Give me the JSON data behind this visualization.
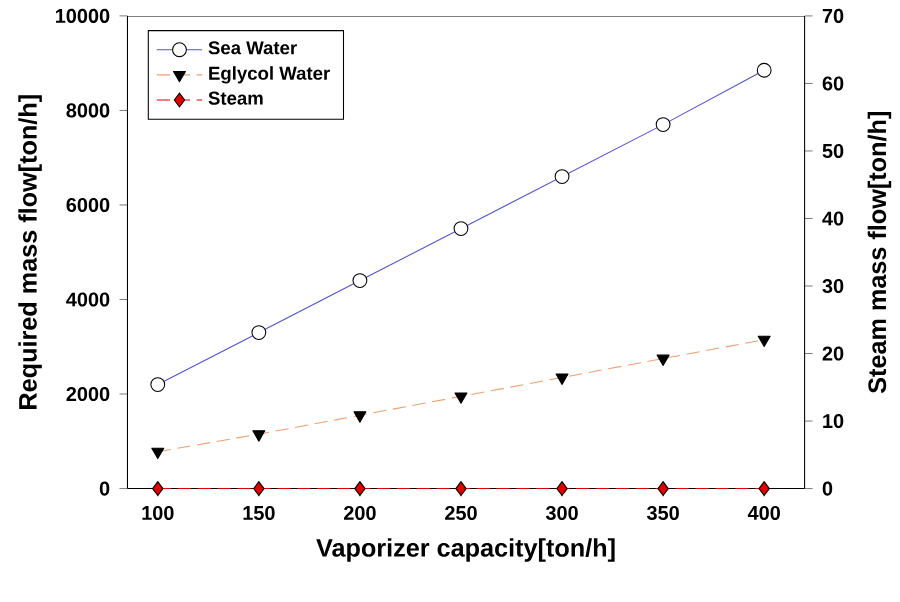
{
  "chart_data": {
    "type": "line",
    "xlabel": "Vaporizer capacity[ton/h]",
    "ylabel": "Required mass flow[ton/h]",
    "y2label": "Steam mass flow[ton/h]",
    "x": [
      100,
      150,
      200,
      250,
      300,
      350,
      400
    ],
    "series": [
      {
        "name": "Sea Water",
        "color": "#5050d0",
        "marker": "circle",
        "line_style": "solid",
        "values": [
          2200,
          3300,
          4400,
          5500,
          6600,
          7700,
          8850
        ]
      },
      {
        "name": "Eglycol Water",
        "color": "#f0a070",
        "marker": "triangle",
        "line_style": "dashed",
        "values": [
          780,
          1150,
          1550,
          1950,
          2350,
          2750,
          3150
        ]
      },
      {
        "name": "Steam",
        "color": "#e00000",
        "marker": "diamond",
        "line_style": "dashed",
        "axis": "y2",
        "values": [
          0,
          0,
          0,
          0,
          0,
          0,
          0
        ]
      }
    ],
    "xlim": [
      85,
      420
    ],
    "xticks": [
      100,
      150,
      200,
      250,
      300,
      350,
      400
    ],
    "ylim": [
      0,
      10000
    ],
    "yticks": [
      0,
      2000,
      4000,
      6000,
      8000,
      10000
    ],
    "y2lim": [
      0,
      70
    ],
    "y2ticks": [
      0,
      10,
      20,
      30,
      40,
      50,
      60,
      70
    ],
    "grid": false,
    "legend": "top left"
  }
}
